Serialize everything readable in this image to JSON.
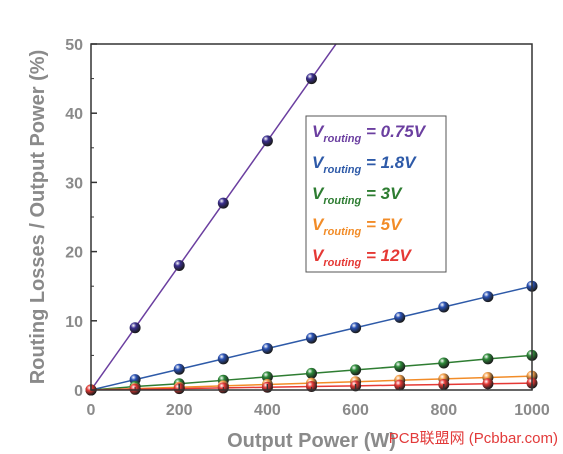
{
  "chart_data": {
    "type": "line",
    "title": "",
    "xlabel": "Output Power (W)",
    "ylabel": "Routing Losses / Output Power (%)",
    "xlim": [
      0,
      1000
    ],
    "ylim": [
      0,
      50
    ],
    "xticks": [
      0,
      200,
      400,
      600,
      800,
      1000
    ],
    "yticks": [
      0,
      10,
      20,
      30,
      40,
      50
    ],
    "grid": false,
    "legend_placement": "center-right",
    "x": [
      0,
      100,
      200,
      300,
      400,
      500,
      600,
      700,
      800,
      900,
      1000
    ],
    "series": [
      {
        "name": "V",
        "subscript": "routing",
        "suffix": "= 0.75V",
        "color": "#6b3fa0",
        "marker_color": "#3b2f8f",
        "values": [
          0,
          9,
          18,
          27,
          36,
          45,
          null,
          null,
          null,
          null,
          null
        ],
        "line_to": [
          600,
          54
        ]
      },
      {
        "name": "V",
        "subscript": "routing",
        "suffix": "=  1.8V",
        "color": "#2e5aa8",
        "marker_color": "#2a52b5",
        "values": [
          0,
          1.5,
          3,
          4.5,
          6,
          7.5,
          9,
          10.5,
          12,
          13.5,
          15
        ]
      },
      {
        "name": "V",
        "subscript": "routing",
        "suffix": "=  3V",
        "color": "#2e7d32",
        "marker_color": "#2e8b3a",
        "values": [
          0,
          0.5,
          0.9,
          1.4,
          1.9,
          2.4,
          2.9,
          3.4,
          3.9,
          4.5,
          5.0
        ]
      },
      {
        "name": "V",
        "subscript": "routing",
        "suffix": "= 5V",
        "color": "#f28c28",
        "marker_color": "#f5a04a",
        "values": [
          0,
          0.2,
          0.4,
          0.6,
          0.8,
          1.0,
          1.2,
          1.4,
          1.6,
          1.8,
          2.0
        ]
      },
      {
        "name": "V",
        "subscript": "routing",
        "suffix": "= 12V",
        "color": "#e53935",
        "marker_color": "#e53935",
        "values": [
          0,
          0.1,
          0.2,
          0.3,
          0.4,
          0.5,
          0.6,
          0.7,
          0.8,
          0.9,
          1.0
        ]
      }
    ]
  },
  "watermark": "PCB联盟网 (Pcbbar.com)"
}
